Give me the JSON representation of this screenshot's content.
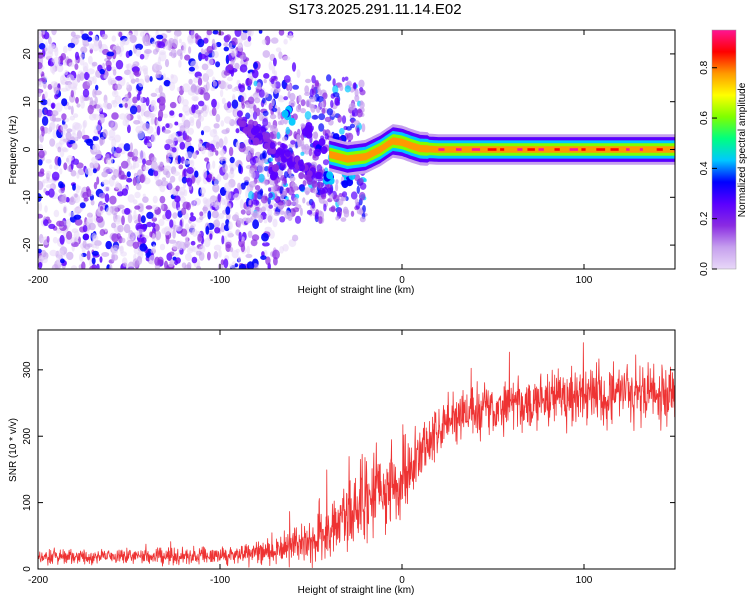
{
  "title": "S173.2025.291.11.14.E02",
  "chart_data": [
    {
      "type": "heatmap",
      "name": "spectrogram",
      "xlabel": "Height of straight line (km)",
      "ylabel": "Frequency (Hz)",
      "xlim": [
        -200,
        150
      ],
      "ylim": [
        -25,
        25
      ],
      "x_ticks": [
        -200,
        -100,
        0,
        100
      ],
      "y_ticks": [
        -20,
        -10,
        0,
        10,
        20
      ],
      "colorbar": {
        "label": "Normalized spectral amplitude",
        "range": [
          0,
          0.95
        ],
        "ticks": [
          0.0,
          0.2,
          0.4,
          0.6,
          0.8
        ],
        "tick_labels": [
          "0.0",
          "0.2",
          "0.4",
          "0.6",
          "0.8"
        ],
        "colormap": [
          "#e8d8f8",
          "#c6a0ee",
          "#8a2be2",
          "#5a00ff",
          "#0000ff",
          "#00c8ff",
          "#00ff80",
          "#7fff00",
          "#ffff00",
          "#ff9900",
          "#ff0000",
          "#ff1493"
        ]
      },
      "carrier_trace": [
        {
          "x": -40,
          "y": -1
        },
        {
          "x": -30,
          "y": -2
        },
        {
          "x": -20,
          "y": -1.5
        },
        {
          "x": -12,
          "y": 0
        },
        {
          "x": -5,
          "y": 1.8
        },
        {
          "x": 0,
          "y": 1.5
        },
        {
          "x": 5,
          "y": 0.8
        },
        {
          "x": 10,
          "y": 0.2
        },
        {
          "x": 20,
          "y": 0
        },
        {
          "x": 150,
          "y": 0
        }
      ],
      "features": [
        {
          "x": -62,
          "y": 7.5,
          "amp": 0.45
        },
        {
          "x": -52,
          "y": 4,
          "amp": 0.35
        },
        {
          "x": -45,
          "y": 1,
          "amp": 0.3
        },
        {
          "x": -35,
          "y": 2,
          "amp": 0.4
        },
        {
          "x": -40,
          "y": -6,
          "amp": 0.45
        },
        {
          "x": -30,
          "y": -6,
          "amp": 0.4
        },
        {
          "x": -80,
          "y": 3,
          "amp": 0.25
        },
        {
          "x": -70,
          "y": -5,
          "amp": 0.25
        }
      ]
    },
    {
      "type": "line",
      "name": "snr",
      "xlabel": "Height of straight line (km)",
      "ylabel": "SNR (10 * v/v)",
      "xlim": [
        -200,
        150
      ],
      "ylim": [
        0,
        360
      ],
      "x_ticks": [
        -200,
        -100,
        0,
        100
      ],
      "y_ticks": [
        0,
        100,
        200,
        300
      ],
      "color": "#ee3333",
      "trend": [
        {
          "x": -200,
          "y": 18
        },
        {
          "x": -100,
          "y": 20
        },
        {
          "x": -80,
          "y": 25
        },
        {
          "x": -60,
          "y": 35
        },
        {
          "x": -40,
          "y": 50
        },
        {
          "x": -30,
          "y": 85
        },
        {
          "x": -20,
          "y": 100
        },
        {
          "x": -10,
          "y": 110
        },
        {
          "x": 0,
          "y": 140
        },
        {
          "x": 10,
          "y": 175
        },
        {
          "x": 20,
          "y": 205
        },
        {
          "x": 30,
          "y": 225
        },
        {
          "x": 40,
          "y": 235
        },
        {
          "x": 50,
          "y": 245
        },
        {
          "x": 70,
          "y": 255
        },
        {
          "x": 100,
          "y": 260
        },
        {
          "x": 150,
          "y": 265
        }
      ],
      "noise": [
        {
          "x": -200,
          "y": 10
        },
        {
          "x": -100,
          "y": 10
        },
        {
          "x": -60,
          "y": 22
        },
        {
          "x": -40,
          "y": 45
        },
        {
          "x": -20,
          "y": 60
        },
        {
          "x": 0,
          "y": 45
        },
        {
          "x": 20,
          "y": 30
        },
        {
          "x": 50,
          "y": 35
        },
        {
          "x": 150,
          "y": 40
        }
      ]
    }
  ]
}
